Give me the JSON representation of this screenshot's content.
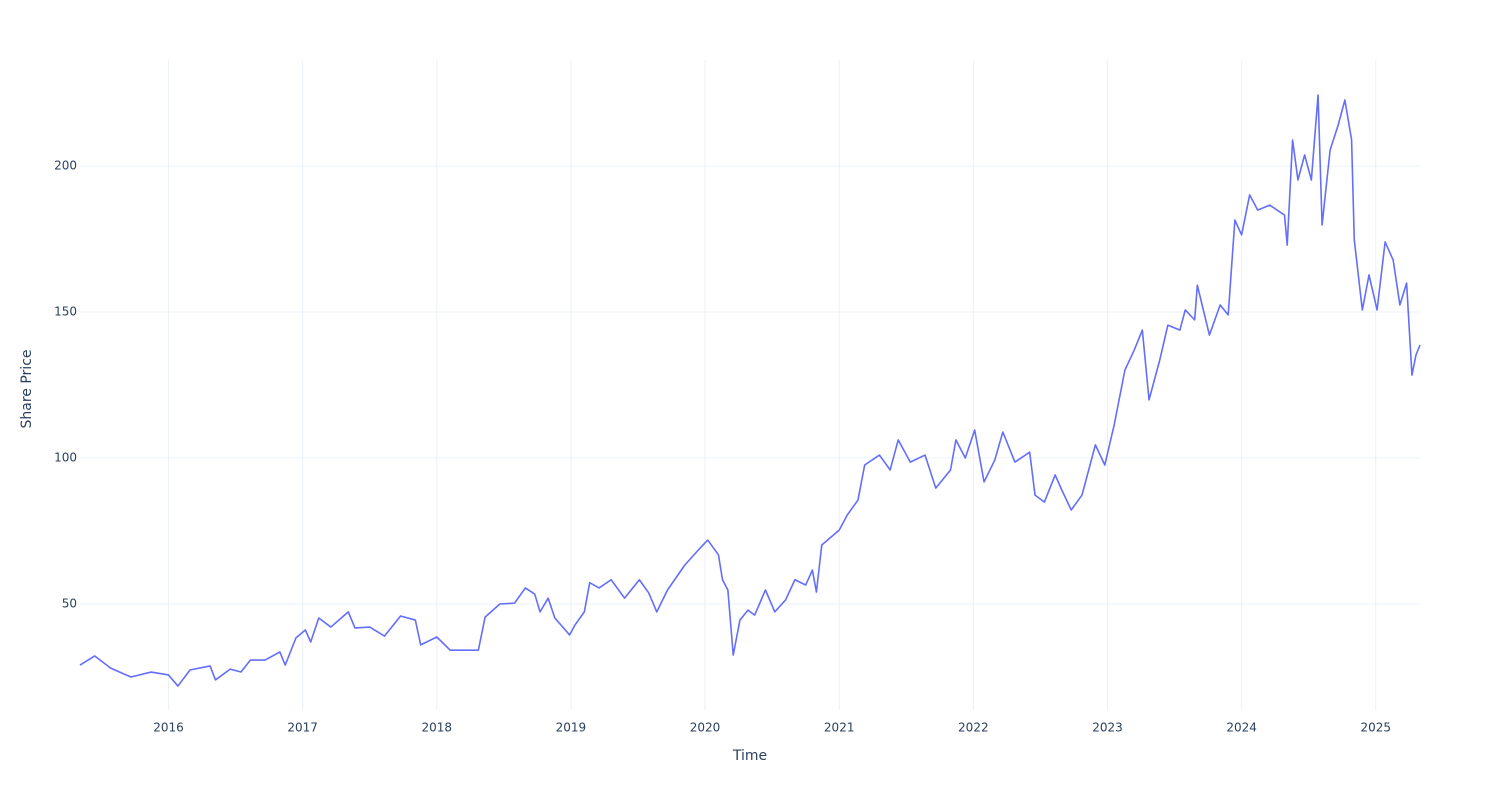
{
  "chart_data": {
    "type": "line",
    "x_label": "Time",
    "y_label": "Share Price",
    "color": "#636efa",
    "grid": true,
    "xlim": [
      2015.34,
      2025.33
    ],
    "ylim": [
      13.7,
      236.3
    ],
    "xticks": [
      2016,
      2017,
      2018,
      2019,
      2020,
      2021,
      2022,
      2023,
      2024,
      2025
    ],
    "yticks": [
      50,
      100,
      150,
      200
    ],
    "x": [
      2015.34,
      2015.45,
      2015.57,
      2015.72,
      2015.87,
      2016.0,
      2016.07,
      2016.16,
      2016.31,
      2016.35,
      2016.46,
      2016.54,
      2016.61,
      2016.72,
      2016.83,
      2016.87,
      2016.95,
      2017.02,
      2017.06,
      2017.12,
      2017.21,
      2017.34,
      2017.39,
      2017.5,
      2017.61,
      2017.73,
      2017.84,
      2017.88,
      2018.0,
      2018.1,
      2018.25,
      2018.31,
      2018.36,
      2018.47,
      2018.58,
      2018.66,
      2018.73,
      2018.77,
      2018.83,
      2018.88,
      2018.99,
      2019.03,
      2019.1,
      2019.14,
      2019.21,
      2019.3,
      2019.4,
      2019.51,
      2019.58,
      2019.64,
      2019.72,
      2019.85,
      2019.95,
      2020.02,
      2020.1,
      2020.13,
      2020.17,
      2020.21,
      2020.26,
      2020.32,
      2020.37,
      2020.45,
      2020.52,
      2020.6,
      2020.67,
      2020.75,
      2020.8,
      2020.83,
      2020.87,
      2021.0,
      2021.06,
      2021.14,
      2021.19,
      2021.3,
      2021.38,
      2021.44,
      2021.53,
      2021.64,
      2021.72,
      2021.83,
      2021.87,
      2021.94,
      2022.01,
      2022.08,
      2022.16,
      2022.22,
      2022.31,
      2022.42,
      2022.46,
      2022.53,
      2022.61,
      2022.66,
      2022.73,
      2022.81,
      2022.91,
      2022.98,
      2023.05,
      2023.13,
      2023.2,
      2023.26,
      2023.31,
      2023.39,
      2023.45,
      2023.54,
      2023.58,
      2023.65,
      2023.67,
      2023.76,
      2023.84,
      2023.9,
      2023.95,
      2024.0,
      2024.06,
      2024.12,
      2024.21,
      2024.32,
      2024.34,
      2024.38,
      2024.42,
      2024.47,
      2024.52,
      2024.57,
      2024.6,
      2024.66,
      2024.72,
      2024.77,
      2024.82,
      2024.84,
      2024.9,
      2024.95,
      2025.01,
      2025.07,
      2025.13,
      2025.18,
      2025.23,
      2025.27,
      2025.3,
      2025.33
    ],
    "values": [
      29.1,
      32.2,
      28,
      25,
      26.7,
      25.7,
      21.9,
      27.4,
      28.8,
      24,
      27.7,
      26.7,
      30.8,
      30.8,
      33.6,
      29.1,
      38.4,
      41.1,
      37,
      45.2,
      42.1,
      47.3,
      41.8,
      42.1,
      39,
      45.9,
      44.5,
      36,
      38.7,
      34.2,
      34.2,
      34.2,
      45.5,
      50,
      50.3,
      55.5,
      53.4,
      47.3,
      52,
      45.2,
      39.4,
      42.8,
      47.3,
      57.3,
      55.5,
      58.3,
      52,
      58.3,
      53.8,
      47.3,
      54.8,
      63.4,
      68.5,
      71.9,
      66.8,
      58.3,
      54.8,
      32.5,
      44.5,
      47.9,
      46.2,
      54.8,
      47.3,
      51.4,
      58.3,
      56.5,
      61.6,
      54.1,
      70.2,
      75.3,
      80.5,
      85.6,
      97.6,
      101,
      95.9,
      106.2,
      98.6,
      101,
      89.7,
      95.9,
      106.2,
      100,
      109.6,
      91.8,
      99.3,
      108.9,
      98.6,
      102,
      87.3,
      84.9,
      94.2,
      89,
      82.2,
      87.3,
      104.5,
      97.6,
      111.3,
      130.1,
      137,
      143.8,
      119.9,
      133.6,
      145.5,
      143.8,
      150.7,
      147.3,
      159.2,
      142.1,
      152.4,
      149,
      181.5,
      176.4,
      190.1,
      184.9,
      186.6,
      183.2,
      172.9,
      208.9,
      195.2,
      203.8,
      195.2,
      224.3,
      179.8,
      205.5,
      214,
      222.6,
      208.9,
      174.7,
      150.7,
      162.7,
      150.7,
      174,
      167.8,
      152.4,
      159.9,
      128.4,
      135.3,
      138.7
    ]
  }
}
